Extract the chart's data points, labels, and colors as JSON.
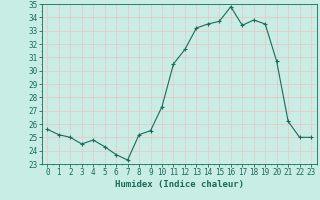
{
  "x": [
    0,
    1,
    2,
    3,
    4,
    5,
    6,
    7,
    8,
    9,
    10,
    11,
    12,
    13,
    14,
    15,
    16,
    17,
    18,
    19,
    20,
    21,
    22,
    23
  ],
  "y": [
    25.6,
    25.2,
    25.0,
    24.5,
    24.8,
    24.3,
    23.7,
    23.3,
    25.2,
    25.5,
    27.3,
    30.5,
    31.6,
    33.2,
    33.5,
    33.7,
    34.8,
    33.4,
    33.8,
    33.5,
    30.7,
    26.2,
    25.0,
    25.0
  ],
  "line_color": "#1a6b5a",
  "marker": "+",
  "marker_size": 3,
  "marker_lw": 0.8,
  "bg_color": "#c8ede5",
  "grid_major_color": "#e8c8c8",
  "grid_minor_color": "#d8e8e4",
  "xlabel": "Humidex (Indice chaleur)",
  "xlim": [
    -0.5,
    23.5
  ],
  "ylim": [
    23,
    35
  ],
  "yticks": [
    23,
    24,
    25,
    26,
    27,
    28,
    29,
    30,
    31,
    32,
    33,
    34,
    35
  ],
  "xticks": [
    0,
    1,
    2,
    3,
    4,
    5,
    6,
    7,
    8,
    9,
    10,
    11,
    12,
    13,
    14,
    15,
    16,
    17,
    18,
    19,
    20,
    21,
    22,
    23
  ],
  "tick_label_fontsize": 5.5,
  "xlabel_fontsize": 6.5,
  "line_width": 0.8
}
